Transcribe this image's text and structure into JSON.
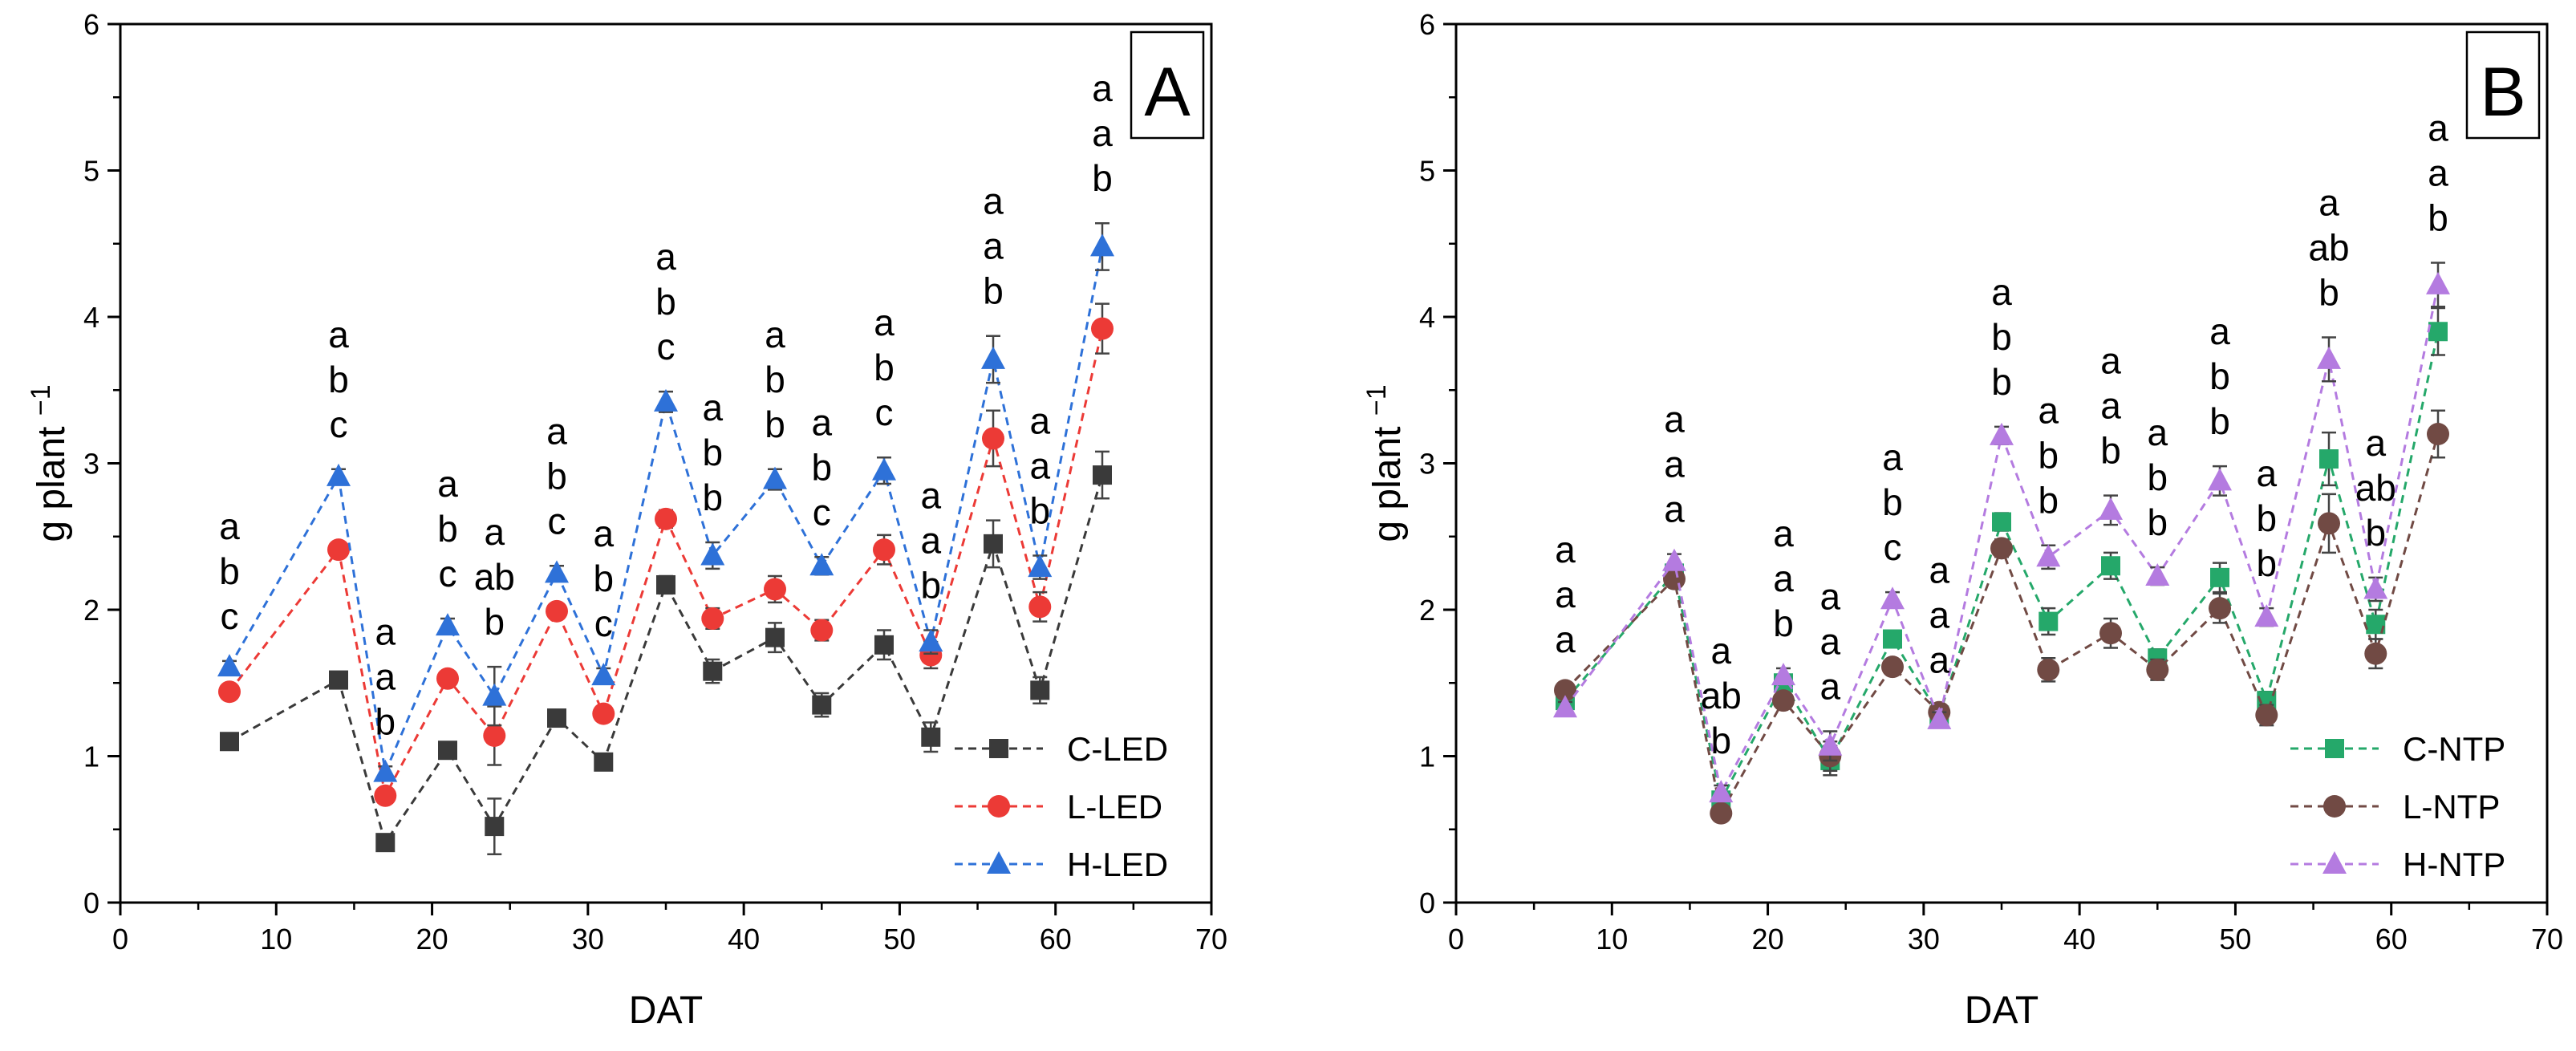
{
  "chart_data": [
    {
      "type": "line",
      "panel_label": "A",
      "xlabel": "DAT",
      "ylabel": "g plant",
      "ylabel_superscript": "−1",
      "xlim": [
        0,
        70
      ],
      "ylim": [
        0,
        6
      ],
      "xticks": [
        "0",
        "10",
        "20",
        "30",
        "40",
        "50",
        "60",
        "70"
      ],
      "yticks": [
        "0",
        "1",
        "2",
        "3",
        "4",
        "5",
        "6"
      ],
      "grid": false,
      "legend_position": "bottom-right",
      "x": [
        7,
        14,
        17,
        21,
        24,
        28,
        31,
        35,
        38,
        42,
        45,
        49,
        52,
        56,
        59,
        63
      ],
      "series": [
        {
          "name": "C-LED",
          "color": "#3a3a3a",
          "marker": "square",
          "values": [
            1.1,
            1.52,
            0.41,
            1.04,
            0.52,
            1.26,
            0.96,
            2.17,
            1.58,
            1.81,
            1.35,
            1.76,
            1.13,
            2.45,
            1.45,
            2.92
          ],
          "errors": [
            0.04,
            0.04,
            0.04,
            0.05,
            0.19,
            0.05,
            0.05,
            0.06,
            0.08,
            0.1,
            0.08,
            0.1,
            0.1,
            0.16,
            0.09,
            0.16
          ]
        },
        {
          "name": "L-LED",
          "color": "#ec3a36",
          "marker": "circle",
          "values": [
            1.44,
            2.41,
            0.73,
            1.53,
            1.14,
            1.99,
            1.29,
            2.62,
            1.94,
            2.14,
            1.86,
            2.41,
            1.69,
            3.17,
            2.02,
            3.92
          ],
          "errors": [
            0.05,
            0.05,
            0.05,
            0.05,
            0.2,
            0.05,
            0.05,
            0.06,
            0.07,
            0.09,
            0.07,
            0.1,
            0.09,
            0.19,
            0.1,
            0.17
          ]
        },
        {
          "name": "H-LED",
          "color": "#2e71d8",
          "marker": "triangle",
          "values": [
            1.61,
            2.91,
            0.89,
            1.89,
            1.41,
            2.25,
            1.55,
            3.42,
            2.37,
            2.89,
            2.3,
            2.95,
            1.78,
            3.71,
            2.29,
            4.48
          ],
          "errors": [
            0.04,
            0.05,
            0.04,
            0.05,
            0.2,
            0.05,
            0.05,
            0.07,
            0.09,
            0.07,
            0.06,
            0.09,
            0.08,
            0.16,
            0.08,
            0.16
          ]
        }
      ],
      "significance": [
        [
          "a",
          "b",
          "c"
        ],
        [
          "a",
          "b",
          "c"
        ],
        [
          "a",
          "a",
          "b"
        ],
        [
          "a",
          "b",
          "c"
        ],
        [
          "a",
          "ab",
          "b"
        ],
        [
          "a",
          "b",
          "c"
        ],
        [
          "a",
          "b",
          "c"
        ],
        [
          "a",
          "b",
          "c"
        ],
        [
          "a",
          "b",
          "b"
        ],
        [
          "a",
          "b",
          "b"
        ],
        [
          "a",
          "b",
          "c"
        ],
        [
          "a",
          "b",
          "c"
        ],
        [
          "a",
          "a",
          "b"
        ],
        [
          "a",
          "a",
          "b"
        ],
        [
          "a",
          "a",
          "b"
        ],
        [
          "a",
          "a",
          "b"
        ]
      ]
    },
    {
      "type": "line",
      "panel_label": "B",
      "xlabel": "DAT",
      "ylabel": "g plant",
      "ylabel_superscript": "−1",
      "xlim": [
        0,
        70
      ],
      "ylim": [
        0,
        6
      ],
      "xticks": [
        "0",
        "10",
        "20",
        "30",
        "40",
        "50",
        "60",
        "70"
      ],
      "yticks": [
        "0",
        "1",
        "2",
        "3",
        "4",
        "5",
        "6"
      ],
      "grid": false,
      "legend_position": "bottom-right",
      "x": [
        7,
        14,
        17,
        21,
        24,
        28,
        31,
        35,
        38,
        42,
        45,
        49,
        52,
        56,
        59,
        63
      ],
      "series": [
        {
          "name": "C-NTP",
          "color": "#25a86a",
          "marker": "square",
          "values": [
            1.38,
            2.25,
            0.7,
            1.5,
            0.97,
            1.8,
            1.28,
            2.6,
            1.92,
            2.3,
            1.67,
            2.22,
            1.38,
            3.03,
            1.9,
            3.9
          ],
          "errors": [
            0.04,
            0.05,
            0.05,
            0.05,
            0.1,
            0.05,
            0.05,
            0.06,
            0.09,
            0.09,
            0.06,
            0.1,
            0.06,
            0.18,
            0.1,
            0.16
          ]
        },
        {
          "name": "L-NTP",
          "color": "#714a44",
          "marker": "circle",
          "values": [
            1.45,
            2.21,
            0.61,
            1.38,
            1.0,
            1.61,
            1.3,
            2.42,
            1.59,
            1.84,
            1.59,
            2.01,
            1.28,
            2.59,
            1.7,
            3.2
          ],
          "errors": [
            0.04,
            0.05,
            0.05,
            0.05,
            0.1,
            0.05,
            0.05,
            0.06,
            0.08,
            0.1,
            0.07,
            0.1,
            0.07,
            0.2,
            0.1,
            0.16
          ]
        },
        {
          "name": "H-NTP",
          "color": "#b47be0",
          "marker": "triangle",
          "values": [
            1.33,
            2.33,
            0.75,
            1.55,
            1.07,
            2.07,
            1.25,
            3.19,
            2.36,
            2.68,
            2.23,
            2.88,
            1.95,
            3.71,
            2.14,
            4.22
          ],
          "errors": [
            0.04,
            0.05,
            0.05,
            0.05,
            0.1,
            0.05,
            0.05,
            0.06,
            0.08,
            0.1,
            0.06,
            0.1,
            0.06,
            0.15,
            0.08,
            0.15
          ]
        }
      ],
      "significance": [
        [
          "a",
          "a",
          "a"
        ],
        [
          "a",
          "a",
          "a"
        ],
        [
          "a",
          "ab",
          "b"
        ],
        [
          "a",
          "a",
          "b"
        ],
        [
          "a",
          "a",
          "a"
        ],
        [
          "a",
          "b",
          "c"
        ],
        [
          "a",
          "a",
          "a"
        ],
        [
          "a",
          "b",
          "b"
        ],
        [
          "a",
          "b",
          "b"
        ],
        [
          "a",
          "a",
          "b"
        ],
        [
          "a",
          "b",
          "b"
        ],
        [
          "a",
          "b",
          "b"
        ],
        [
          "a",
          "b",
          "b"
        ],
        [
          "a",
          "ab",
          "b"
        ],
        [
          "a",
          "ab",
          "b"
        ],
        [
          "a",
          "a",
          "b"
        ]
      ]
    }
  ]
}
